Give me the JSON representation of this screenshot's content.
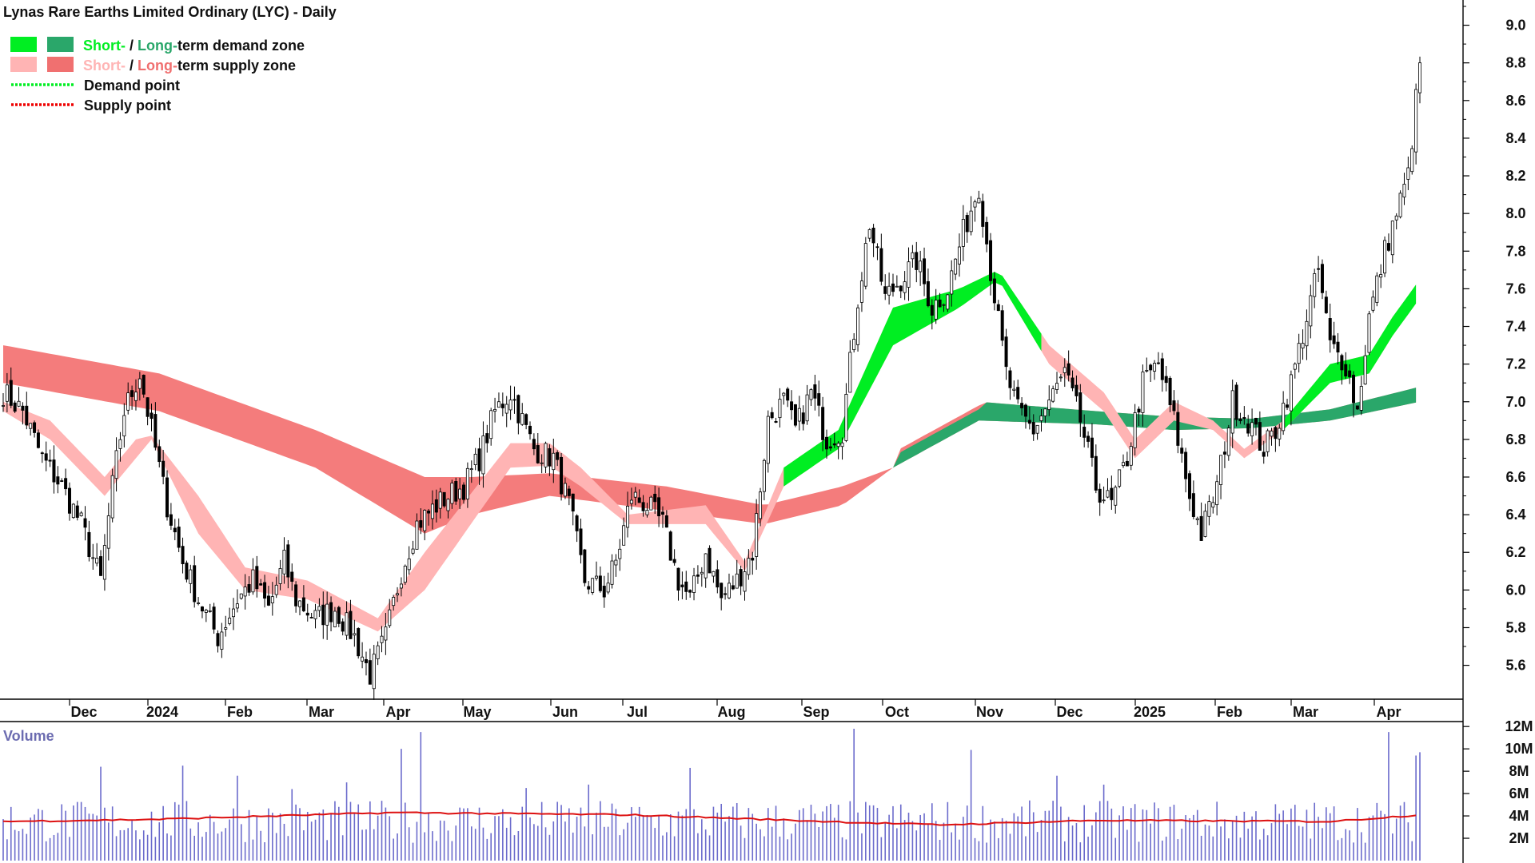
{
  "chart_data": {
    "type": "candlestick",
    "title": "Lynas Rare Earths Limited Ordinary (LYC) - Daily",
    "legend": {
      "placement": "top-left",
      "items": [
        {
          "kind": "zone",
          "short_label": "Short-",
          "sep": " / ",
          "long_label": "Long-",
          "rest": "term demand zone",
          "short_color": "#00ee22",
          "long_color": "#2aa76a"
        },
        {
          "kind": "zone",
          "short_label": "Short-",
          "sep": " / ",
          "long_label": "Long-",
          "rest": "term supply zone",
          "short_color": "#ffb4b4",
          "long_color": "#f07070"
        },
        {
          "kind": "line",
          "label": "Demand point",
          "color": "#00ee22"
        },
        {
          "kind": "line",
          "label": "Supply point",
          "color": "#ee0000"
        }
      ]
    },
    "x_axis_labels": [
      "Dec",
      "2024",
      "Feb",
      "Mar",
      "Apr",
      "May",
      "Jun",
      "Jul",
      "Aug",
      "Sep",
      "Oct",
      "Nov",
      "Dec",
      "2025",
      "Feb",
      "Mar",
      "Apr"
    ],
    "price_axis": {
      "ticks": [
        5.6,
        5.8,
        6.0,
        6.2,
        6.4,
        6.6,
        6.8,
        7.0,
        7.2,
        7.4,
        7.6,
        7.8,
        8.0,
        8.2,
        8.4,
        8.6,
        8.8,
        9.0
      ],
      "tick_labels": [
        "5.6",
        "5.8",
        "6.0",
        "6.2",
        "6.4",
        "6.6",
        "6.8",
        "7.0",
        "7.2",
        "7.4",
        "7.6",
        "7.8",
        "8.0",
        "8.2",
        "8.4",
        "8.6",
        "8.8",
        "9.0"
      ],
      "range": [
        5.42,
        9.1
      ],
      "side": "right"
    },
    "close_anchors": [
      [
        0,
        7.05
      ],
      [
        5,
        6.95
      ],
      [
        10,
        6.7
      ],
      [
        15,
        6.55
      ],
      [
        20,
        6.35
      ],
      [
        25,
        6.05
      ],
      [
        28,
        6.55
      ],
      [
        31,
        6.95
      ],
      [
        35,
        7.15
      ],
      [
        38,
        6.85
      ],
      [
        42,
        6.45
      ],
      [
        46,
        6.15
      ],
      [
        50,
        5.95
      ],
      [
        55,
        5.75
      ],
      [
        60,
        5.95
      ],
      [
        64,
        6.05
      ],
      [
        68,
        5.9
      ],
      [
        72,
        6.15
      ],
      [
        75,
        5.95
      ],
      [
        80,
        5.85
      ],
      [
        85,
        5.9
      ],
      [
        90,
        5.75
      ],
      [
        94,
        5.55
      ],
      [
        98,
        5.75
      ],
      [
        102,
        6.1
      ],
      [
        106,
        6.35
      ],
      [
        111,
        6.45
      ],
      [
        114,
        6.5
      ],
      [
        118,
        6.55
      ],
      [
        122,
        6.7
      ],
      [
        126,
        6.95
      ],
      [
        130,
        7.05
      ],
      [
        133,
        6.9
      ],
      [
        136,
        6.75
      ],
      [
        141,
        6.7
      ],
      [
        145,
        6.45
      ],
      [
        149,
        6.05
      ],
      [
        154,
        6.0
      ],
      [
        157,
        6.15
      ],
      [
        161,
        6.5
      ],
      [
        165,
        6.45
      ],
      [
        169,
        6.35
      ],
      [
        173,
        6.05
      ],
      [
        176,
        5.95
      ],
      [
        180,
        6.2
      ],
      [
        184,
        5.95
      ],
      [
        188,
        6.05
      ],
      [
        192,
        6.2
      ],
      [
        196,
        6.9
      ],
      [
        200,
        7.0
      ],
      [
        203,
        6.85
      ],
      [
        207,
        7.05
      ],
      [
        211,
        6.8
      ],
      [
        215,
        6.85
      ],
      [
        219,
        7.55
      ],
      [
        222,
        7.95
      ],
      [
        226,
        7.55
      ],
      [
        230,
        7.65
      ],
      [
        234,
        7.75
      ],
      [
        238,
        7.5
      ],
      [
        242,
        7.6
      ],
      [
        246,
        7.9
      ],
      [
        250,
        8.15
      ],
      [
        253,
        7.7
      ],
      [
        257,
        7.15
      ],
      [
        260,
        6.95
      ],
      [
        264,
        6.85
      ],
      [
        268,
        7.0
      ],
      [
        272,
        7.15
      ],
      [
        276,
        6.9
      ],
      [
        280,
        6.55
      ],
      [
        284,
        6.45
      ],
      [
        288,
        6.7
      ],
      [
        292,
        7.1
      ],
      [
        296,
        7.2
      ],
      [
        300,
        6.9
      ],
      [
        304,
        6.5
      ],
      [
        307,
        6.3
      ],
      [
        311,
        6.55
      ],
      [
        315,
        7.0
      ],
      [
        319,
        6.9
      ],
      [
        323,
        6.75
      ],
      [
        326,
        6.85
      ],
      [
        330,
        7.1
      ],
      [
        334,
        7.45
      ],
      [
        337,
        7.7
      ],
      [
        340,
        7.3
      ],
      [
        344,
        7.2
      ],
      [
        347,
        6.95
      ],
      [
        350,
        7.45
      ],
      [
        354,
        7.8
      ],
      [
        357,
        8.0
      ],
      [
        360,
        8.2
      ],
      [
        363,
        8.8
      ]
    ],
    "volume": {
      "label": "Volume",
      "ticks": [
        2,
        4,
        6,
        8,
        10,
        12
      ],
      "tick_labels": [
        "2M",
        "4M",
        "6M",
        "8M",
        "10M",
        "12M"
      ],
      "range": [
        0,
        12.3
      ],
      "bar_color": "#6b6bcc",
      "average_color": "#dd1111",
      "average_anchors": [
        [
          0,
          3.5
        ],
        [
          40,
          3.7
        ],
        [
          100,
          4.3
        ],
        [
          160,
          4.1
        ],
        [
          220,
          3.4
        ],
        [
          240,
          3.2
        ],
        [
          280,
          3.6
        ],
        [
          340,
          3.5
        ],
        [
          363,
          4.1
        ]
      ],
      "spikes": [
        [
          25,
          8.4
        ],
        [
          46,
          8.5
        ],
        [
          60,
          7.6
        ],
        [
          74,
          6.4
        ],
        [
          88,
          7.0
        ],
        [
          102,
          10.0
        ],
        [
          107,
          11.5
        ],
        [
          134,
          6.5
        ],
        [
          150,
          6.8
        ],
        [
          176,
          8.3
        ],
        [
          218,
          11.8
        ],
        [
          248,
          9.9
        ],
        [
          270,
          7.6
        ],
        [
          282,
          6.8
        ],
        [
          355,
          11.5
        ],
        [
          362,
          9.4
        ],
        [
          363,
          9.7
        ]
      ]
    },
    "series_zones": [
      {
        "name": "Long-term supply/demand zone",
        "anchors": [
          [
            0,
            7.1,
            7.3
          ],
          [
            40,
            6.95,
            7.15
          ],
          [
            80,
            6.65,
            6.85
          ],
          [
            108,
            6.3,
            6.6
          ],
          [
            120,
            6.4,
            6.6
          ],
          [
            140,
            6.5,
            6.62
          ],
          [
            170,
            6.42,
            6.55
          ],
          [
            195,
            6.35,
            6.45
          ],
          [
            215,
            6.45,
            6.55
          ],
          [
            228,
            6.65
          ],
          [
            250,
            6.9,
            7.0
          ],
          [
            280,
            6.88,
            6.95
          ],
          [
            300,
            6.85,
            6.92
          ],
          [
            320,
            6.86,
            6.91
          ],
          [
            340,
            6.9,
            6.96
          ],
          [
            363,
            7.0,
            7.08
          ]
        ]
      },
      {
        "name": "Short-term zone",
        "anchors": [
          [
            0,
            6.95,
            7.0
          ],
          [
            12,
            6.8,
            6.9
          ],
          [
            26,
            6.5,
            6.6
          ],
          [
            34,
            6.7,
            6.8
          ],
          [
            38,
            6.8,
            6.82
          ],
          [
            50,
            6.3,
            6.5
          ],
          [
            62,
            6.0,
            6.12
          ],
          [
            78,
            5.95,
            6.05
          ],
          [
            96,
            5.78,
            5.85
          ],
          [
            108,
            6.0,
            6.2
          ],
          [
            130,
            6.65,
            6.78
          ],
          [
            140,
            6.66,
            6.78
          ],
          [
            148,
            6.55,
            6.65
          ],
          [
            160,
            6.35,
            6.4
          ],
          [
            180,
            6.35,
            6.45
          ],
          [
            190,
            6.1,
            6.15
          ],
          [
            200,
            6.55,
            6.65
          ],
          [
            214,
            6.75,
            6.85
          ],
          [
            228,
            7.3,
            7.5
          ],
          [
            245,
            7.5,
            7.6
          ],
          [
            255,
            7.65,
            7.7
          ],
          [
            268,
            7.2,
            7.3
          ],
          [
            282,
            6.95,
            7.05
          ],
          [
            290,
            6.7,
            6.8
          ],
          [
            300,
            6.9,
            7.0
          ],
          [
            310,
            6.85,
            6.9
          ],
          [
            318,
            6.7,
            6.75
          ],
          [
            328,
            6.85,
            6.9
          ],
          [
            340,
            7.1,
            7.2
          ],
          [
            350,
            7.15,
            7.25
          ],
          [
            356,
            7.35,
            7.45
          ],
          [
            363,
            7.55,
            7.65
          ]
        ]
      }
    ]
  }
}
